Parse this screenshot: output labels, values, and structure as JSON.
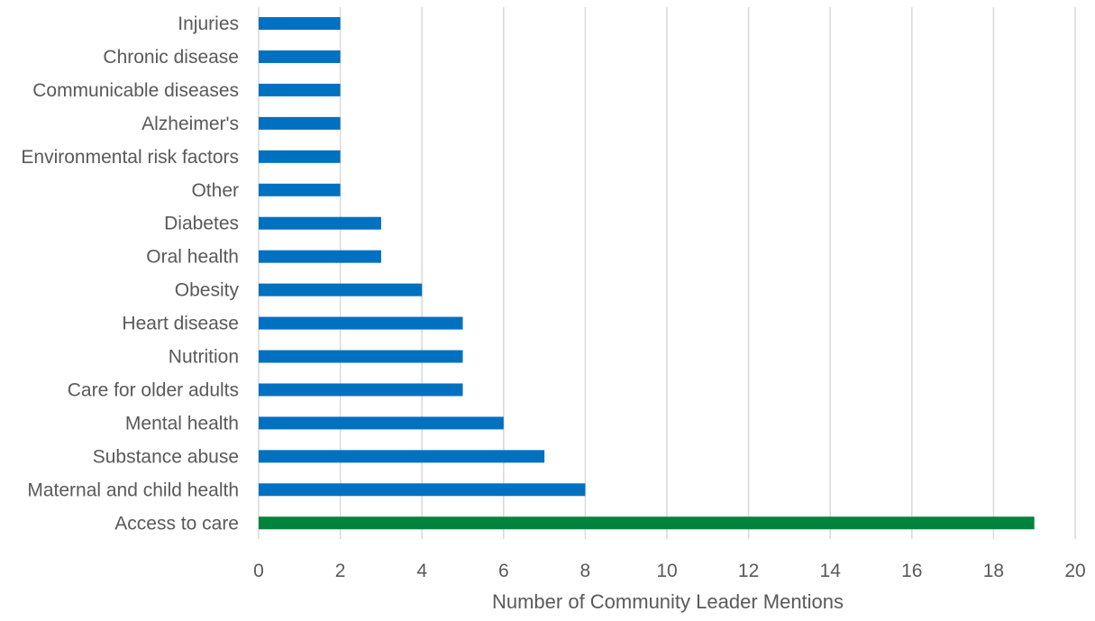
{
  "chart_data": {
    "type": "bar",
    "orientation": "horizontal",
    "title": "",
    "xlabel": "Number of Community Leader Mentions",
    "ylabel": "",
    "xlim": [
      0,
      20
    ],
    "x_ticks": [
      0,
      2,
      4,
      6,
      8,
      10,
      12,
      14,
      16,
      18,
      20
    ],
    "grid": "vertical",
    "legend": "none",
    "colors": {
      "default_bar": "#0070C0",
      "highlight_bar": "#00843D",
      "grid": "#D9D9D9",
      "text": "#595959"
    },
    "highlight_category": "Access to care",
    "categories": [
      "Injuries",
      "Chronic disease",
      "Communicable diseases",
      "Alzheimer's",
      "Environmental risk factors",
      "Other",
      "Diabetes",
      "Oral health",
      "Obesity",
      "Heart disease",
      "Nutrition",
      "Care for older adults",
      "Mental health",
      "Substance abuse",
      "Maternal and child health",
      "Access to care"
    ],
    "values": [
      2,
      2,
      2,
      2,
      2,
      2,
      3,
      3,
      4,
      5,
      5,
      5,
      6,
      7,
      8,
      19
    ]
  }
}
